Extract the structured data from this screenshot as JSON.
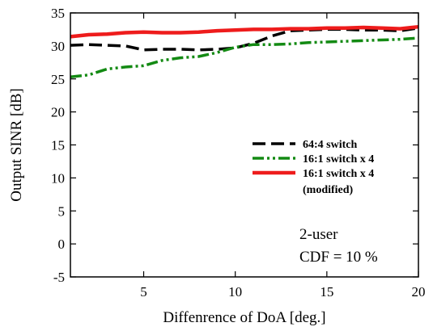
{
  "chart_data": {
    "type": "line",
    "xlabel": "Diffenrence of DoA [deg.]",
    "ylabel": "Output SINR [dB]",
    "xlim": [
      1,
      20
    ],
    "ylim": [
      -5,
      35
    ],
    "xticks": [
      5,
      10,
      15,
      20
    ],
    "yticks": [
      -5,
      0,
      5,
      10,
      15,
      20,
      25,
      30,
      35
    ],
    "grid": false,
    "legend_position": "center-right",
    "series": [
      {
        "name": "64:4 switch",
        "color": "#000000",
        "dash": "dashed",
        "x": [
          1,
          2,
          3,
          4,
          5,
          6,
          7,
          8,
          9,
          10,
          11,
          12,
          13,
          14,
          15,
          16,
          17,
          18,
          19,
          20
        ],
        "y": [
          30.1,
          30.2,
          30.1,
          30.0,
          29.4,
          29.5,
          29.5,
          29.4,
          29.5,
          29.7,
          30.4,
          31.5,
          32.3,
          32.4,
          32.5,
          32.5,
          32.4,
          32.4,
          32.3,
          32.7
        ]
      },
      {
        "name": "16:1 switch x 4",
        "color": "#138a13",
        "dash": "dash-dot-dot",
        "x": [
          1,
          2,
          3,
          4,
          5,
          6,
          7,
          8,
          9,
          10,
          11,
          12,
          13,
          14,
          15,
          16,
          17,
          18,
          19,
          20
        ],
        "y": [
          25.3,
          25.6,
          26.5,
          26.8,
          27.0,
          27.8,
          28.2,
          28.4,
          29.0,
          29.8,
          30.2,
          30.2,
          30.3,
          30.5,
          30.6,
          30.7,
          30.8,
          30.9,
          31.0,
          31.2
        ]
      },
      {
        "name": "16:1 switch x 4",
        "name_line2": "(modified)",
        "color": "#ee1c1c",
        "dash": "solid",
        "x": [
          1,
          2,
          3,
          4,
          5,
          6,
          7,
          8,
          9,
          10,
          11,
          12,
          13,
          14,
          15,
          16,
          17,
          18,
          19,
          20
        ],
        "y": [
          31.4,
          31.7,
          31.8,
          32.0,
          32.1,
          32.0,
          32.0,
          32.1,
          32.3,
          32.4,
          32.5,
          32.5,
          32.6,
          32.6,
          32.7,
          32.7,
          32.8,
          32.7,
          32.6,
          32.9
        ]
      }
    ],
    "annotations": [
      "2-user",
      "CDF = 10 %"
    ]
  }
}
